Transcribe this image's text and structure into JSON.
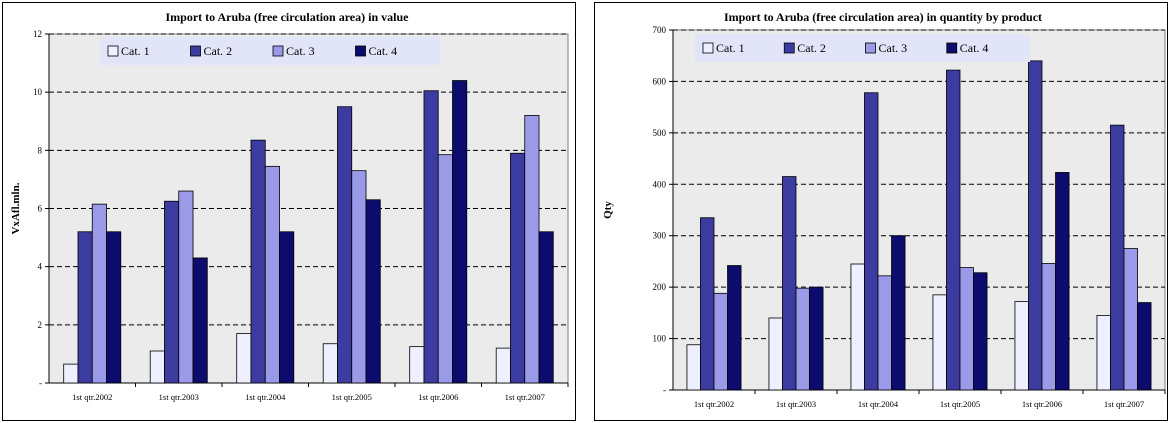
{
  "colors": {
    "Cat. 1": "#eef0ff",
    "Cat. 2": "#3c3ca0",
    "Cat. 3": "#9a9ae8",
    "Cat. 4": "#0c0c6e",
    "plot_bg": "#ebebeb",
    "legend_bg": "#e2e4f7"
  },
  "chart_data": [
    {
      "type": "bar",
      "title": "Import to Aruba (free circulation area) in value",
      "ylabel": "VxAfl.mln.",
      "xlabel": "",
      "categories": [
        "1st qtr.2002",
        "1st qtr.2003",
        "1st qtr.2004",
        "1st qtr.2005",
        "1st qtr.2006",
        "1st qtr.2007"
      ],
      "series": [
        {
          "name": "Cat. 1",
          "values": [
            0.65,
            1.1,
            1.7,
            1.35,
            1.25,
            1.2
          ]
        },
        {
          "name": "Cat. 2",
          "values": [
            5.2,
            6.25,
            8.35,
            9.5,
            10.05,
            7.9
          ]
        },
        {
          "name": "Cat. 3",
          "values": [
            6.15,
            6.6,
            7.45,
            7.3,
            7.85,
            9.2
          ]
        },
        {
          "name": "Cat. 4",
          "values": [
            5.2,
            4.3,
            5.2,
            6.3,
            10.4,
            5.2
          ]
        }
      ],
      "ylim": [
        0,
        12
      ],
      "yticks": [
        0,
        2,
        4,
        6,
        8,
        10,
        12
      ],
      "ytick_labels": [
        "-",
        "2",
        "4",
        "6",
        "8",
        "10",
        "12"
      ],
      "grid": true,
      "legend": "top"
    },
    {
      "type": "bar",
      "title": "Import to Aruba (free circulation area) in quantity by product",
      "ylabel": "Qty",
      "xlabel": "",
      "categories": [
        "1st qtr.2002",
        "1st qtr.2003",
        "1st qtr.2004",
        "1st qtr.2005",
        "1st qtr.2006",
        "1st qtr.2007"
      ],
      "series": [
        {
          "name": "Cat. 1",
          "values": [
            88,
            140,
            245,
            185,
            172,
            145
          ]
        },
        {
          "name": "Cat. 2",
          "values": [
            335,
            415,
            578,
            622,
            640,
            515
          ]
        },
        {
          "name": "Cat. 3",
          "values": [
            188,
            198,
            222,
            238,
            246,
            275
          ]
        },
        {
          "name": "Cat. 4",
          "values": [
            242,
            200,
            300,
            228,
            423,
            170
          ]
        }
      ],
      "ylim": [
        0,
        700
      ],
      "yticks": [
        0,
        100,
        200,
        300,
        400,
        500,
        600,
        700
      ],
      "ytick_labels": [
        "-",
        "100",
        "200",
        "300",
        "400",
        "500",
        "600",
        "700"
      ],
      "grid": true,
      "legend": "top"
    }
  ]
}
